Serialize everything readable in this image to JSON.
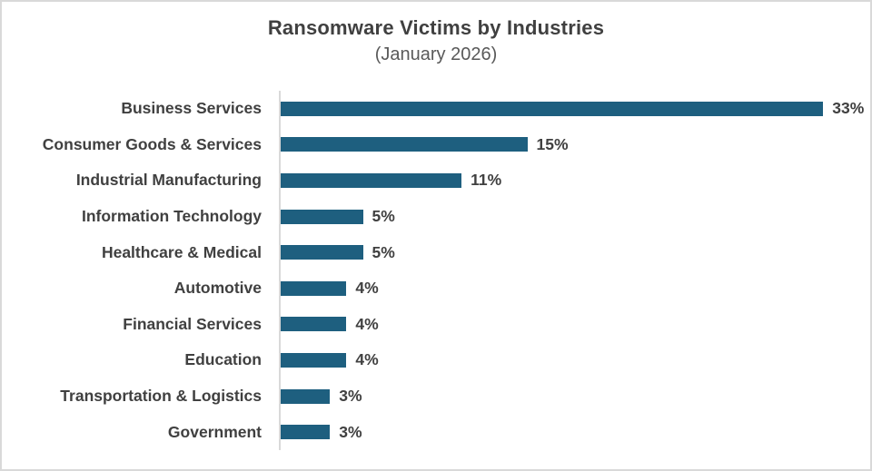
{
  "page": {
    "background": "#ffffff",
    "border_color": "#D9D9D9"
  },
  "header": {
    "title": "Ransomware Victims by Industries",
    "subtitle": "(January 2026)"
  },
  "chart_data": {
    "type": "bar",
    "orientation": "horizontal",
    "title": "Ransomware Victims by Industries",
    "subtitle": "(January 2026)",
    "categories": [
      "Business Services",
      "Consumer Goods & Services",
      "Industrial Manufacturing",
      "Information Technology",
      "Healthcare & Medical",
      "Automotive",
      "Financial Services",
      "Education",
      "Transportation & Logistics",
      "Government"
    ],
    "values": [
      33,
      15,
      11,
      5,
      5,
      4,
      4,
      4,
      3,
      3
    ],
    "value_labels": [
      "33%",
      "15%",
      "11%",
      "5%",
      "5%",
      "4%",
      "4%",
      "4%",
      "3%",
      "3%"
    ],
    "value_suffix": "%",
    "xlim": [
      0,
      35.8
    ],
    "grid": false,
    "legend": "none",
    "data_labels": "outside-end",
    "bar_color": "#1E5F7F",
    "axis_line_color": "#D9D9D9",
    "text_color": "#404040",
    "subtitle_color": "#595959"
  }
}
